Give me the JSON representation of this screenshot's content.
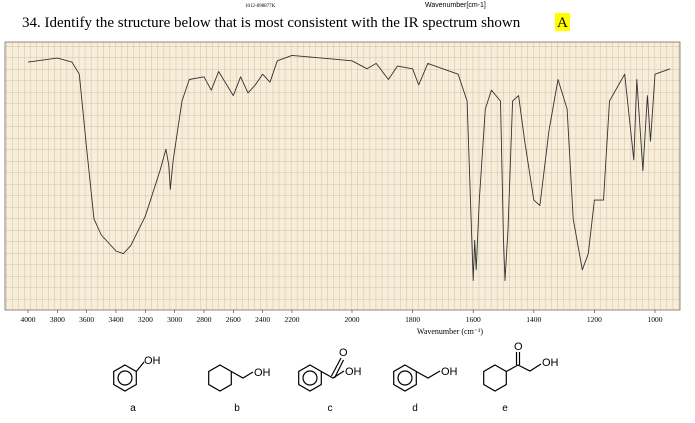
{
  "header_codes": [
    "1012-898877K",
    "Wavenumber[cm-1]"
  ],
  "question": {
    "text": "34. Identify the structure below that is most consistent with the IR spectrum shown",
    "answer": "A"
  },
  "chart_data": {
    "type": "line",
    "x_label": "Wavenumber (cm⁻¹)",
    "xlim": [
      4000,
      950
    ],
    "ylim": [
      0,
      100
    ],
    "xticks": [
      4000,
      3800,
      3600,
      3400,
      3200,
      3000,
      2800,
      2600,
      2400,
      2200,
      2000,
      1800,
      1600,
      1400,
      1200,
      1000
    ],
    "x": [
      4000,
      3800,
      3700,
      3650,
      3600,
      3550,
      3500,
      3400,
      3350,
      3300,
      3200,
      3100,
      3060,
      3040,
      3030,
      3010,
      2950,
      2900,
      2800,
      2750,
      2700,
      2600,
      2550,
      2500,
      2450,
      2400,
      2350,
      2300,
      2200,
      2100,
      2000,
      1950,
      1920,
      1880,
      1850,
      1800,
      1780,
      1750,
      1700,
      1650,
      1620,
      1600,
      1595,
      1590,
      1580,
      1560,
      1540,
      1510,
      1500,
      1495,
      1485,
      1470,
      1450,
      1430,
      1400,
      1380,
      1350,
      1320,
      1290,
      1270,
      1240,
      1220,
      1200,
      1170,
      1150,
      1100,
      1070,
      1060,
      1040,
      1025,
      1015,
      1000,
      950
    ],
    "series": [
      {
        "color": "#333333",
        "values": [
          92.5,
          94,
          92.5,
          88,
          60,
          34,
          28,
          22,
          21,
          24,
          35,
          52,
          60,
          54,
          45,
          56,
          78,
          86,
          87,
          82,
          89,
          80,
          87,
          81,
          84,
          88,
          85,
          93,
          95,
          94,
          93,
          90,
          92,
          86,
          91,
          90,
          84,
          92,
          90,
          88,
          78,
          11,
          26,
          15,
          41,
          75,
          82,
          78,
          26,
          11,
          30,
          78,
          80,
          63,
          41,
          39,
          67,
          86,
          75,
          34,
          15,
          21,
          41,
          41,
          78,
          88,
          56,
          86,
          52,
          80,
          63,
          88,
          90
        ]
      }
    ]
  },
  "structures": [
    {
      "groups": [
        "OH"
      ],
      "label": "a"
    },
    {
      "groups": [
        "OH"
      ],
      "label": "b"
    },
    {
      "groups": [
        "O",
        "OH"
      ],
      "label": "c"
    },
    {
      "groups": [
        "OH"
      ],
      "label": "d"
    },
    {
      "groups": [
        "O",
        "OH"
      ],
      "label": "e"
    }
  ]
}
